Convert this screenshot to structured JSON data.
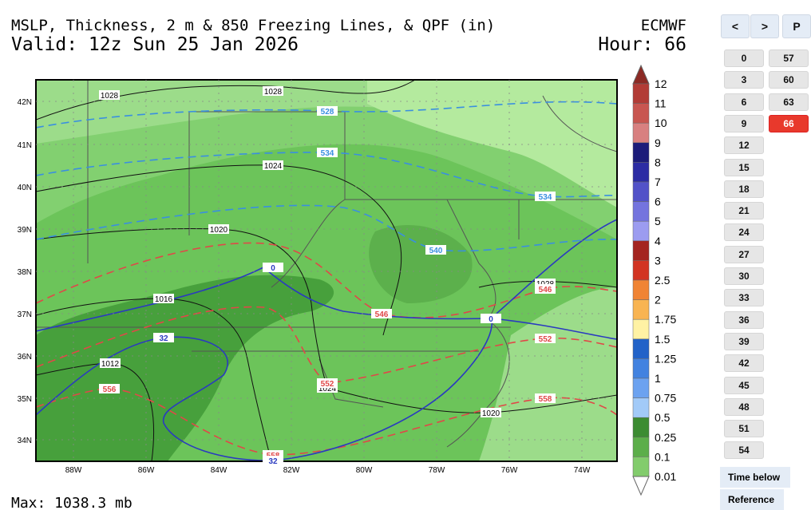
{
  "header": {
    "title": "MSLP, Thickness, 2 m & 850 Freezing Lines, & QPF (in)",
    "valid": "Valid: 12z Sun 25 Jan 2026",
    "model": "ECMWF",
    "hour": "Hour: 66"
  },
  "colorbar": {
    "labels": [
      "12",
      "11",
      "10",
      "9",
      "8",
      "7",
      "6",
      "5",
      "4",
      "3",
      "2.5",
      "2",
      "1.75",
      "1.5",
      "1.25",
      "1",
      "0.75",
      "0.5",
      "0.25",
      "0.1",
      "0.01"
    ],
    "colors": [
      "#8c2a24",
      "#b23c36",
      "#c85650",
      "#d88080",
      "#1c1c7a",
      "#2c2ca4",
      "#5252c8",
      "#7474de",
      "#9c9cf0",
      "#a42420",
      "#d23422",
      "#f08434",
      "#f8b452",
      "#fff2a4",
      "#2262c8",
      "#4282e0",
      "#6ca2f0",
      "#a2caf8",
      "#3c8c32",
      "#5cae4a",
      "#82cc6c",
      "#b2e8a2"
    ]
  },
  "map": {
    "lat_labels": [
      "42N",
      "41N",
      "40N",
      "39N",
      "38N",
      "37N",
      "36N",
      "35N",
      "34N"
    ],
    "lon_labels": [
      "88W",
      "86W",
      "84W",
      "82W",
      "80W",
      "78W",
      "76W",
      "74W"
    ],
    "contour_labels": [
      "1028",
      "1028",
      "1024",
      "1020",
      "1016",
      "1012",
      "1024",
      "1020",
      "1028",
      "528",
      "534",
      "534",
      "540",
      "546",
      "546",
      "552",
      "552",
      "556",
      "558",
      "558",
      "0",
      "32",
      "0",
      "32"
    ],
    "footer": "Max: 1038.3 mb"
  },
  "sidebar": {
    "nav": [
      "<",
      ">",
      "P"
    ],
    "hours": [
      "0",
      "3",
      "6",
      "9",
      "12",
      "15",
      "18",
      "21",
      "24",
      "27",
      "30",
      "33",
      "36",
      "39",
      "42",
      "45",
      "48",
      "51",
      "54",
      "57",
      "60",
      "63",
      "66"
    ],
    "selected": 22,
    "tabs": [
      "Time below",
      "Reference"
    ]
  }
}
